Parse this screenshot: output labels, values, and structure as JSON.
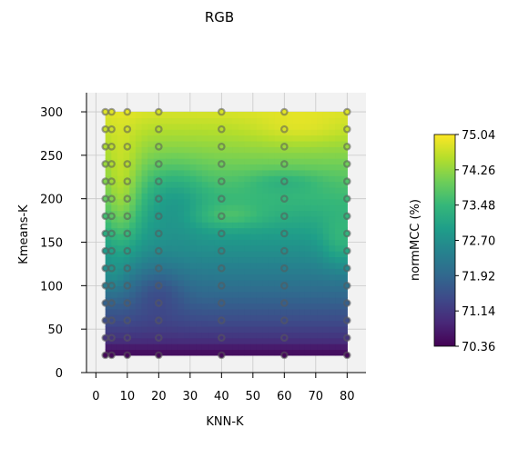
{
  "chart_data": {
    "type": "heatmap",
    "title": "RGB",
    "xlabel": "KNN-K",
    "ylabel": "Kmeans-K",
    "xlim": [
      -3,
      86
    ],
    "ylim": [
      0,
      322
    ],
    "x_ticks": [
      "0",
      "10",
      "20",
      "30",
      "40",
      "50",
      "60",
      "70",
      "80"
    ],
    "y_ticks": [
      "0",
      "50",
      "100",
      "150",
      "200",
      "250",
      "300"
    ],
    "sample_x": [
      3,
      5,
      10,
      20,
      40,
      60,
      80
    ],
    "sample_y": [
      20,
      40,
      60,
      80,
      100,
      120,
      140,
      160,
      180,
      200,
      220,
      240,
      260,
      280,
      300
    ],
    "surface_x_range": [
      3,
      80
    ],
    "surface_y_range": [
      20,
      300
    ],
    "colorbar": {
      "label": "normMCC (%)",
      "ticks": [
        "75.04",
        "74.26",
        "73.48",
        "72.70",
        "71.92",
        "71.14",
        "70.36"
      ],
      "min": 70.36,
      "max": 75.04,
      "colormap": [
        "#440154",
        "#482878",
        "#3e4989",
        "#31688e",
        "#26828e",
        "#1f9e89",
        "#35b779",
        "#6ece58",
        "#b5de2b",
        "#fde725"
      ]
    },
    "pane_color": "#f2f2f2",
    "grid": true
  }
}
